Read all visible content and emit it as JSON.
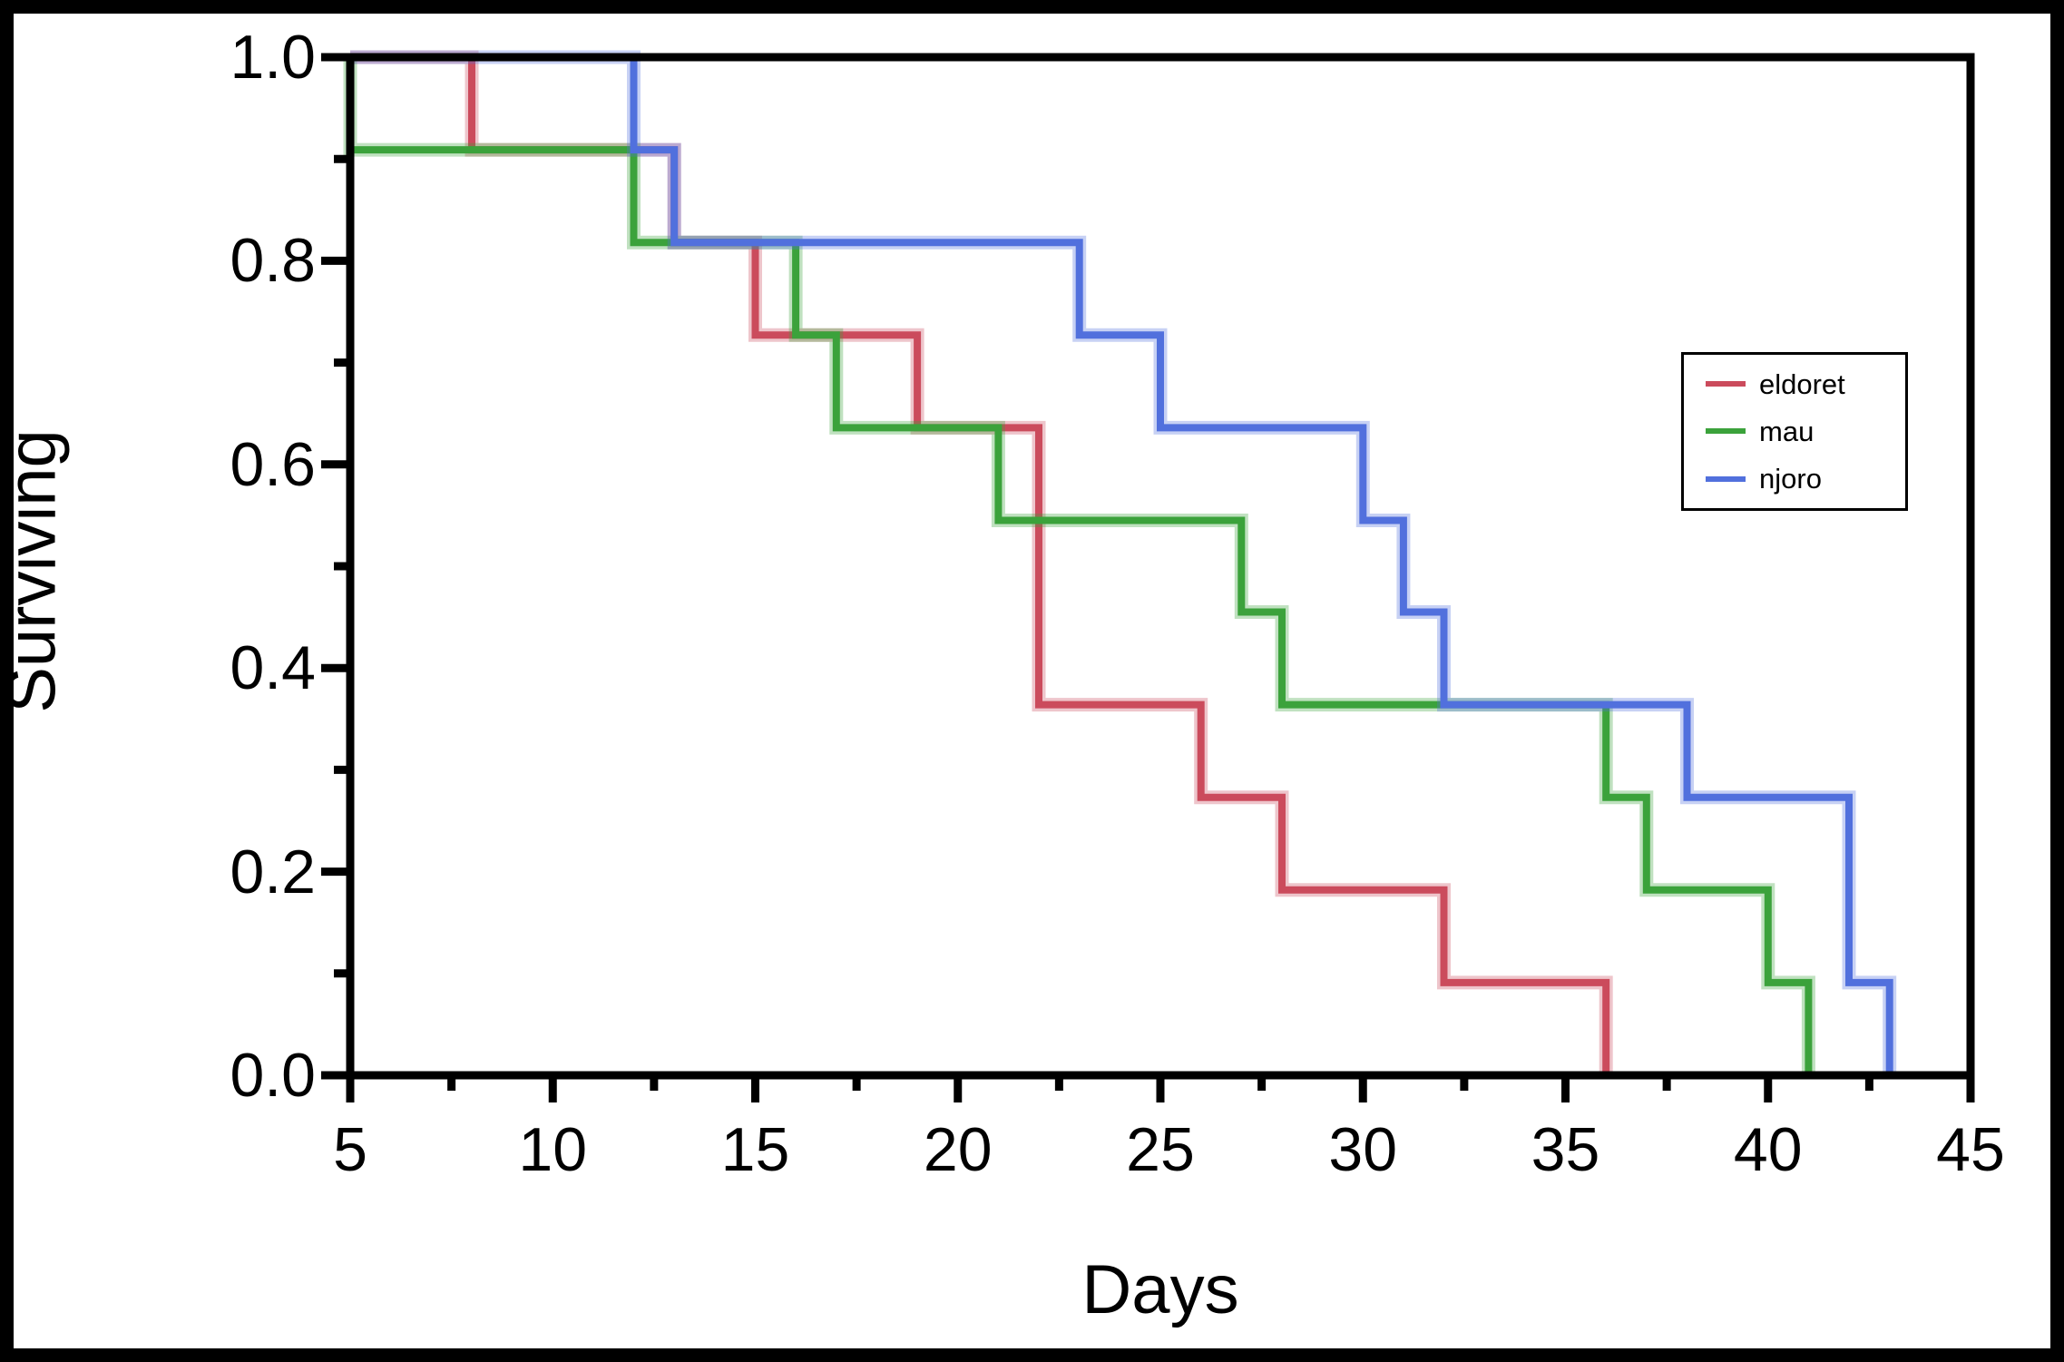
{
  "figure": {
    "background": "#ffffff",
    "border_color": "#000000",
    "axis_color": "#000000"
  },
  "chart_data": {
    "type": "line",
    "subtype": "step-survival-kaplan-meier",
    "title": "",
    "xlabel": "Days",
    "ylabel": "Surviving",
    "xlim": [
      5,
      45
    ],
    "ylim": [
      0.0,
      1.0
    ],
    "x_major_ticks": [
      5,
      10,
      15,
      20,
      25,
      30,
      35,
      40,
      45
    ],
    "x_minor_ticks": [
      7.5,
      12.5,
      17.5,
      22.5,
      27.5,
      32.5,
      37.5,
      42.5
    ],
    "y_major_ticks": [
      {
        "v": 0.0,
        "label": "0.0"
      },
      {
        "v": 0.2,
        "label": "0.2"
      },
      {
        "v": 0.4,
        "label": "0.4"
      },
      {
        "v": 0.6,
        "label": "0.6"
      },
      {
        "v": 0.8,
        "label": "0.8"
      },
      {
        "v": 1.0,
        "label": "1.0"
      }
    ],
    "y_minor_ticks": [
      0.1,
      0.3,
      0.5,
      0.7,
      0.9
    ],
    "grid": false,
    "legend_position": "inside-right",
    "series": [
      {
        "name": "eldoret",
        "color": "#cb4b5c",
        "points": [
          [
            5,
            1.0
          ],
          [
            8,
            1.0
          ],
          [
            8,
            0.909
          ],
          [
            13,
            0.909
          ],
          [
            13,
            0.818
          ],
          [
            15,
            0.818
          ],
          [
            15,
            0.727
          ],
          [
            19,
            0.727
          ],
          [
            19,
            0.636
          ],
          [
            22,
            0.636
          ],
          [
            22,
            0.364
          ],
          [
            26,
            0.364
          ],
          [
            26,
            0.273
          ],
          [
            28,
            0.273
          ],
          [
            28,
            0.182
          ],
          [
            32,
            0.182
          ],
          [
            32,
            0.091
          ],
          [
            36,
            0.091
          ],
          [
            36,
            0.0
          ]
        ]
      },
      {
        "name": "mau",
        "color": "#3ba23b",
        "points": [
          [
            5,
            1.0
          ],
          [
            5,
            0.909
          ],
          [
            12,
            0.909
          ],
          [
            12,
            0.818
          ],
          [
            16,
            0.818
          ],
          [
            16,
            0.727
          ],
          [
            17,
            0.727
          ],
          [
            17,
            0.636
          ],
          [
            21,
            0.636
          ],
          [
            21,
            0.545
          ],
          [
            27,
            0.545
          ],
          [
            27,
            0.455
          ],
          [
            28,
            0.455
          ],
          [
            28,
            0.364
          ],
          [
            36,
            0.364
          ],
          [
            36,
            0.273
          ],
          [
            37,
            0.273
          ],
          [
            37,
            0.182
          ],
          [
            40,
            0.182
          ],
          [
            40,
            0.091
          ],
          [
            41,
            0.091
          ],
          [
            41,
            0.0
          ]
        ]
      },
      {
        "name": "njoro",
        "color": "#5170dd",
        "points": [
          [
            5,
            1.0
          ],
          [
            12,
            1.0
          ],
          [
            12,
            0.909
          ],
          [
            13,
            0.909
          ],
          [
            13,
            0.818
          ],
          [
            23,
            0.818
          ],
          [
            23,
            0.727
          ],
          [
            25,
            0.727
          ],
          [
            25,
            0.636
          ],
          [
            30,
            0.636
          ],
          [
            30,
            0.545
          ],
          [
            31,
            0.545
          ],
          [
            31,
            0.455
          ],
          [
            32,
            0.455
          ],
          [
            32,
            0.364
          ],
          [
            38,
            0.364
          ],
          [
            38,
            0.273
          ],
          [
            42,
            0.273
          ],
          [
            42,
            0.091
          ],
          [
            43,
            0.091
          ],
          [
            43,
            0.0
          ]
        ]
      }
    ]
  },
  "legend": {
    "items": [
      {
        "label": "eldoret",
        "color": "#cb4b5c"
      },
      {
        "label": "mau",
        "color": "#3ba23b"
      },
      {
        "label": "njoro",
        "color": "#5170dd"
      }
    ]
  }
}
